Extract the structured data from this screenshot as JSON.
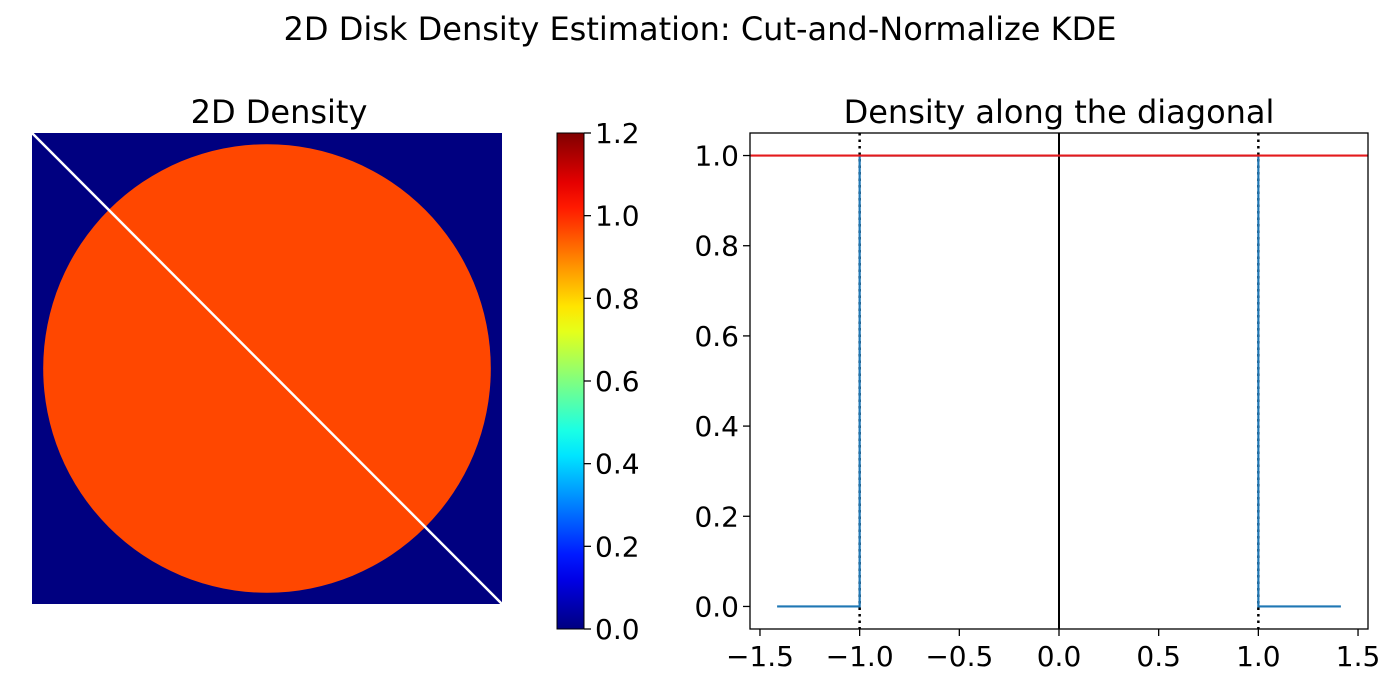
{
  "suptitle": "2D Disk Density Estimation: Cut-and-Normalize KDE",
  "colors": {
    "background": "#000080",
    "disk": "#ff4700",
    "diagonal": "#ffffff",
    "density_line": "#1f77b4",
    "reference_line": "#e41a1c",
    "guide": "#000000"
  },
  "chart_data": [
    {
      "type": "heatmap",
      "title": "2D Density",
      "extent": {
        "x": [
          -1.05,
          1.05
        ],
        "y": [
          -1.05,
          1.05
        ]
      },
      "regions": [
        {
          "shape": "square",
          "value": 0.0
        },
        {
          "shape": "disk",
          "center": [
            0,
            0
          ],
          "radius": 1.0,
          "value": 1.0
        }
      ],
      "overlay_line": {
        "from": [
          -1.05,
          1.05
        ],
        "to": [
          1.05,
          -1.05
        ],
        "color": "#ffffff"
      },
      "colorbar": {
        "colormap": "jet",
        "range": [
          0.0,
          1.2
        ],
        "tick_labels": [
          "0.0",
          "0.2",
          "0.4",
          "0.6",
          "0.8",
          "1.0",
          "1.2"
        ]
      }
    },
    {
      "type": "line",
      "title": "Density along the diagonal",
      "xlim": [
        -1.55,
        1.55
      ],
      "ylim": [
        -0.05,
        1.05
      ],
      "x_tick_labels": [
        "−1.5",
        "−1.0",
        "−0.5",
        "0.0",
        "0.5",
        "1.0",
        "1.5"
      ],
      "y_tick_labels": [
        "0.0",
        "0.2",
        "0.4",
        "0.6",
        "0.8",
        "1.0"
      ],
      "series": [
        {
          "x": [
            -1.414,
            -1.0,
            -1.0,
            1.0,
            1.0,
            1.414
          ],
          "y": [
            0.0,
            0.0,
            1.0,
            1.0,
            0.0,
            0.0
          ],
          "color": "#1f77b4"
        }
      ],
      "hlines": [
        {
          "y": 1.0,
          "color": "#e41a1c",
          "style": "solid"
        }
      ],
      "vlines": [
        {
          "x": 0.0,
          "color": "#000000",
          "style": "solid"
        },
        {
          "x": -1.0,
          "color": "#000000",
          "style": "dotted"
        },
        {
          "x": 1.0,
          "color": "#000000",
          "style": "dotted"
        }
      ],
      "grid": false
    }
  ]
}
